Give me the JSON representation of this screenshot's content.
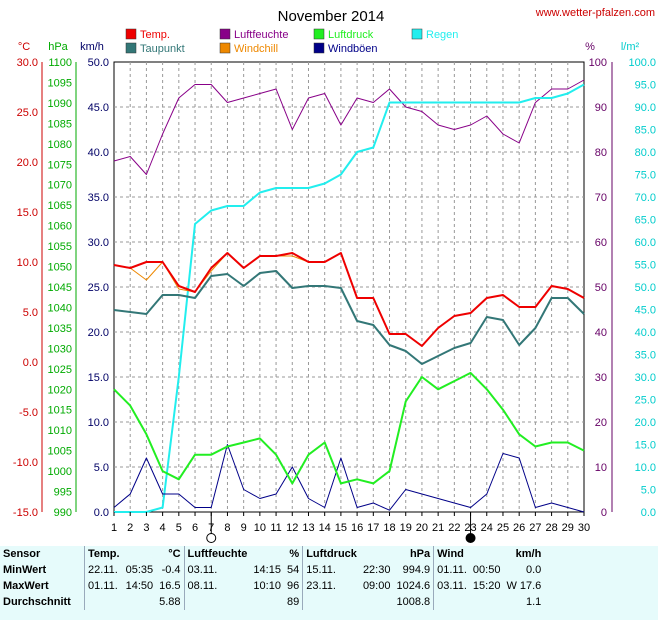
{
  "site": "www.wetter-pfalzen.com",
  "chart_data": {
    "type": "line",
    "title": "November 2014",
    "x": [
      1,
      2,
      3,
      4,
      5,
      6,
      7,
      8,
      9,
      10,
      11,
      12,
      13,
      14,
      15,
      16,
      17,
      18,
      19,
      20,
      21,
      22,
      23,
      24,
      25,
      26,
      27,
      28,
      29,
      30
    ],
    "xlim": [
      1,
      30
    ],
    "axes": [
      {
        "unit": "°C",
        "color": "#cc0000",
        "min": -15,
        "max": 30,
        "step": 5,
        "decimals": 1
      },
      {
        "unit": "hPa",
        "color": "#00aa00",
        "min": 990,
        "max": 1100,
        "step": 5,
        "decimals": 0
      },
      {
        "unit": "km/h",
        "color": "#000066",
        "min": 0,
        "max": 50,
        "step": 5,
        "decimals": 1
      },
      {
        "unit": "%",
        "color": "#660066",
        "min": 0,
        "max": 100,
        "step": 10,
        "decimals": 0
      },
      {
        "unit": "l/m²",
        "color": "#00cccc",
        "min": 0,
        "max": 100,
        "step": 5,
        "decimals": 1
      }
    ],
    "legend": [
      {
        "name": "Temp.",
        "color": "#ee0000"
      },
      {
        "name": "Luftfeuchte",
        "color": "#880088"
      },
      {
        "name": "Luftdruck",
        "color": "#22ee22"
      },
      {
        "name": "Regen",
        "color": "#22eeee"
      },
      {
        "name": "Taupunkt",
        "color": "#337777"
      },
      {
        "name": "Windchill",
        "color": "#ee8800"
      },
      {
        "name": "Windböen",
        "color": "#000088"
      }
    ],
    "series": [
      {
        "name": "Luftfeuchte",
        "axis": 3,
        "color": "#880088",
        "width": 1,
        "values": [
          78,
          79,
          75,
          84,
          92,
          95,
          95,
          91,
          92,
          93,
          94,
          85,
          92,
          93,
          86,
          92,
          91,
          94,
          90,
          89,
          86,
          85,
          86,
          88,
          84,
          82,
          91,
          94,
          94,
          96
        ]
      },
      {
        "name": "Regen",
        "axis": 4,
        "color": "#22eeee",
        "width": 2,
        "values": [
          0,
          0,
          0,
          1,
          30,
          64,
          67,
          68,
          68,
          71,
          72,
          72,
          72,
          73,
          75,
          80,
          81,
          91,
          91,
          91,
          91,
          91,
          91,
          91,
          91,
          91,
          92,
          92,
          93,
          95
        ]
      },
      {
        "name": "Windböen",
        "axis": 2,
        "color": "#000088",
        "width": 1,
        "values": [
          0.5,
          2,
          6,
          2,
          2,
          0.5,
          0.5,
          7.5,
          2.5,
          1.5,
          2,
          5,
          1.5,
          0.5,
          6,
          0.5,
          1,
          0.2,
          2.5,
          2,
          1.5,
          1,
          0.5,
          2,
          6.5,
          6,
          0.5,
          1,
          0.5,
          0
        ]
      },
      {
        "name": "Luftdruck",
        "axis": 1,
        "color": "#22ee22",
        "width": 2,
        "values": [
          1020,
          1016,
          1009,
          1000,
          998,
          1004,
          1004,
          1006,
          1007,
          1008,
          1004,
          997,
          1004,
          1007,
          997,
          998,
          997,
          1000,
          1017,
          1023,
          1020,
          1022,
          1024,
          1020,
          1015,
          1009,
          1006,
          1007,
          1007,
          1005
        ]
      },
      {
        "name": "Taupunkt",
        "axis": 0,
        "color": "#337777",
        "width": 2,
        "values": [
          5.2,
          5.0,
          4.8,
          6.7,
          6.7,
          6.4,
          8.6,
          8.8,
          7.6,
          8.9,
          9.1,
          7.4,
          7.6,
          7.6,
          7.4,
          4.1,
          3.7,
          1.7,
          1.1,
          -0.2,
          0.6,
          1.4,
          1.9,
          4.5,
          4.2,
          1.7,
          3.4,
          6.4,
          6.4,
          4.8
        ]
      },
      {
        "name": "Windchill",
        "axis": 0,
        "color": "#ee8800",
        "width": 1,
        "values": [
          9.7,
          9.4,
          8.2,
          10.0,
          7.3,
          7.0,
          9.1,
          10.9,
          9.4,
          10.6,
          10.6,
          10.6,
          10.0,
          10.0,
          10.9,
          6.4,
          6.4,
          2.8,
          2.8,
          1.6,
          3.4,
          4.6,
          4.9,
          6.4,
          6.7,
          5.5,
          5.5,
          7.6,
          7.3,
          6.4
        ]
      },
      {
        "name": "Temp.",
        "axis": 0,
        "color": "#ee0000",
        "width": 2,
        "values": [
          9.7,
          9.4,
          10.0,
          10.0,
          7.6,
          7.0,
          9.4,
          10.9,
          9.4,
          10.6,
          10.6,
          10.9,
          10.0,
          10.0,
          10.9,
          6.4,
          6.4,
          2.8,
          2.8,
          1.6,
          3.4,
          4.6,
          4.9,
          6.4,
          6.7,
          5.5,
          5.5,
          7.6,
          7.3,
          6.4
        ]
      }
    ],
    "markers": [
      {
        "day": 7,
        "type": "full-moon"
      },
      {
        "day": 23,
        "type": "new-moon"
      }
    ],
    "grid": true
  },
  "stats": {
    "headers": [
      {
        "key": "sensor",
        "label": "Sensor"
      },
      {
        "temp": "Temp.",
        "unit": "°C"
      },
      {
        "hum": "Luftfeuchte",
        "unit": "%"
      },
      {
        "press": "Luftdruck",
        "unit": "hPa"
      },
      {
        "wind": "Wind",
        "unit": "km/h"
      }
    ],
    "rows": [
      {
        "label": "MinWert",
        "temp_date": "22.11.",
        "temp_time": "05:35",
        "temp_val": "-0.4",
        "hum_date": "03.11.",
        "hum_time": "14:15",
        "hum_val": "54",
        "press_date": "15.11.",
        "press_time": "22:30",
        "press_val": "994.9",
        "wind_date": "01.11.",
        "wind_time": "00:50",
        "wind_val": "0.0"
      },
      {
        "label": "MaxWert",
        "temp_date": "01.11.",
        "temp_time": "14:50",
        "temp_val": "16.5",
        "hum_date": "08.11.",
        "hum_time": "10:10",
        "hum_val": "96",
        "press_date": "23.11.",
        "press_time": "09:00",
        "press_val": "1024.6",
        "wind_date": "03.11.",
        "wind_time": "15:20",
        "wind_val": "W 17.6"
      },
      {
        "label": "Durchschnitt",
        "temp_date": "",
        "temp_time": "",
        "temp_val": "5.88",
        "hum_date": "",
        "hum_time": "",
        "hum_val": "89",
        "press_date": "",
        "press_time": "",
        "press_val": "1008.8",
        "wind_date": "",
        "wind_time": "",
        "wind_val": "1.1"
      }
    ]
  }
}
